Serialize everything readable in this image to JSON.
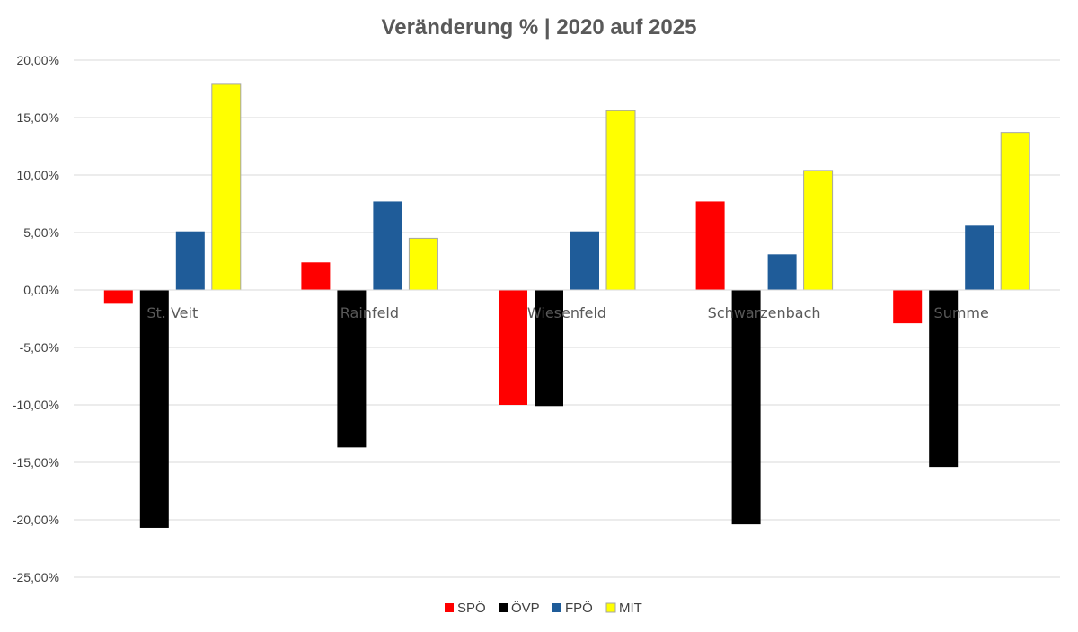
{
  "chart_data": {
    "type": "bar",
    "title": "Veränderung % | 2020 auf 2025",
    "xlabel": "",
    "ylabel": "",
    "categories": [
      "St. Veit",
      "Rainfeld",
      "Wiesenfeld",
      "Schwarzenbach",
      "Summe"
    ],
    "series": [
      {
        "name": "SPÖ",
        "color": "#ff0000",
        "values": [
          -1.2,
          2.4,
          -10.0,
          7.7,
          -2.9
        ]
      },
      {
        "name": "ÖVP",
        "color": "#000000",
        "values": [
          -20.7,
          -13.7,
          -10.1,
          -20.4,
          -15.4
        ]
      },
      {
        "name": "FPÖ",
        "color": "#1f5c99",
        "values": [
          5.1,
          7.7,
          5.1,
          3.1,
          5.6
        ]
      },
      {
        "name": "MIT",
        "color": "#ffff00",
        "values": [
          17.9,
          4.5,
          15.6,
          10.4,
          13.7
        ]
      }
    ],
    "ylim": [
      -25,
      20
    ],
    "yticks": [
      20,
      15,
      10,
      5,
      0,
      -5,
      -10,
      -15,
      -20,
      -25
    ],
    "ytick_labels": [
      "20,00%",
      "15,00%",
      "10,00%",
      "5,00%",
      "0,00%",
      "-5,00%",
      "-10,00%",
      "-15,00%",
      "-20,00%",
      "-25,00%"
    ],
    "grid": true,
    "legend_position": "bottom"
  }
}
